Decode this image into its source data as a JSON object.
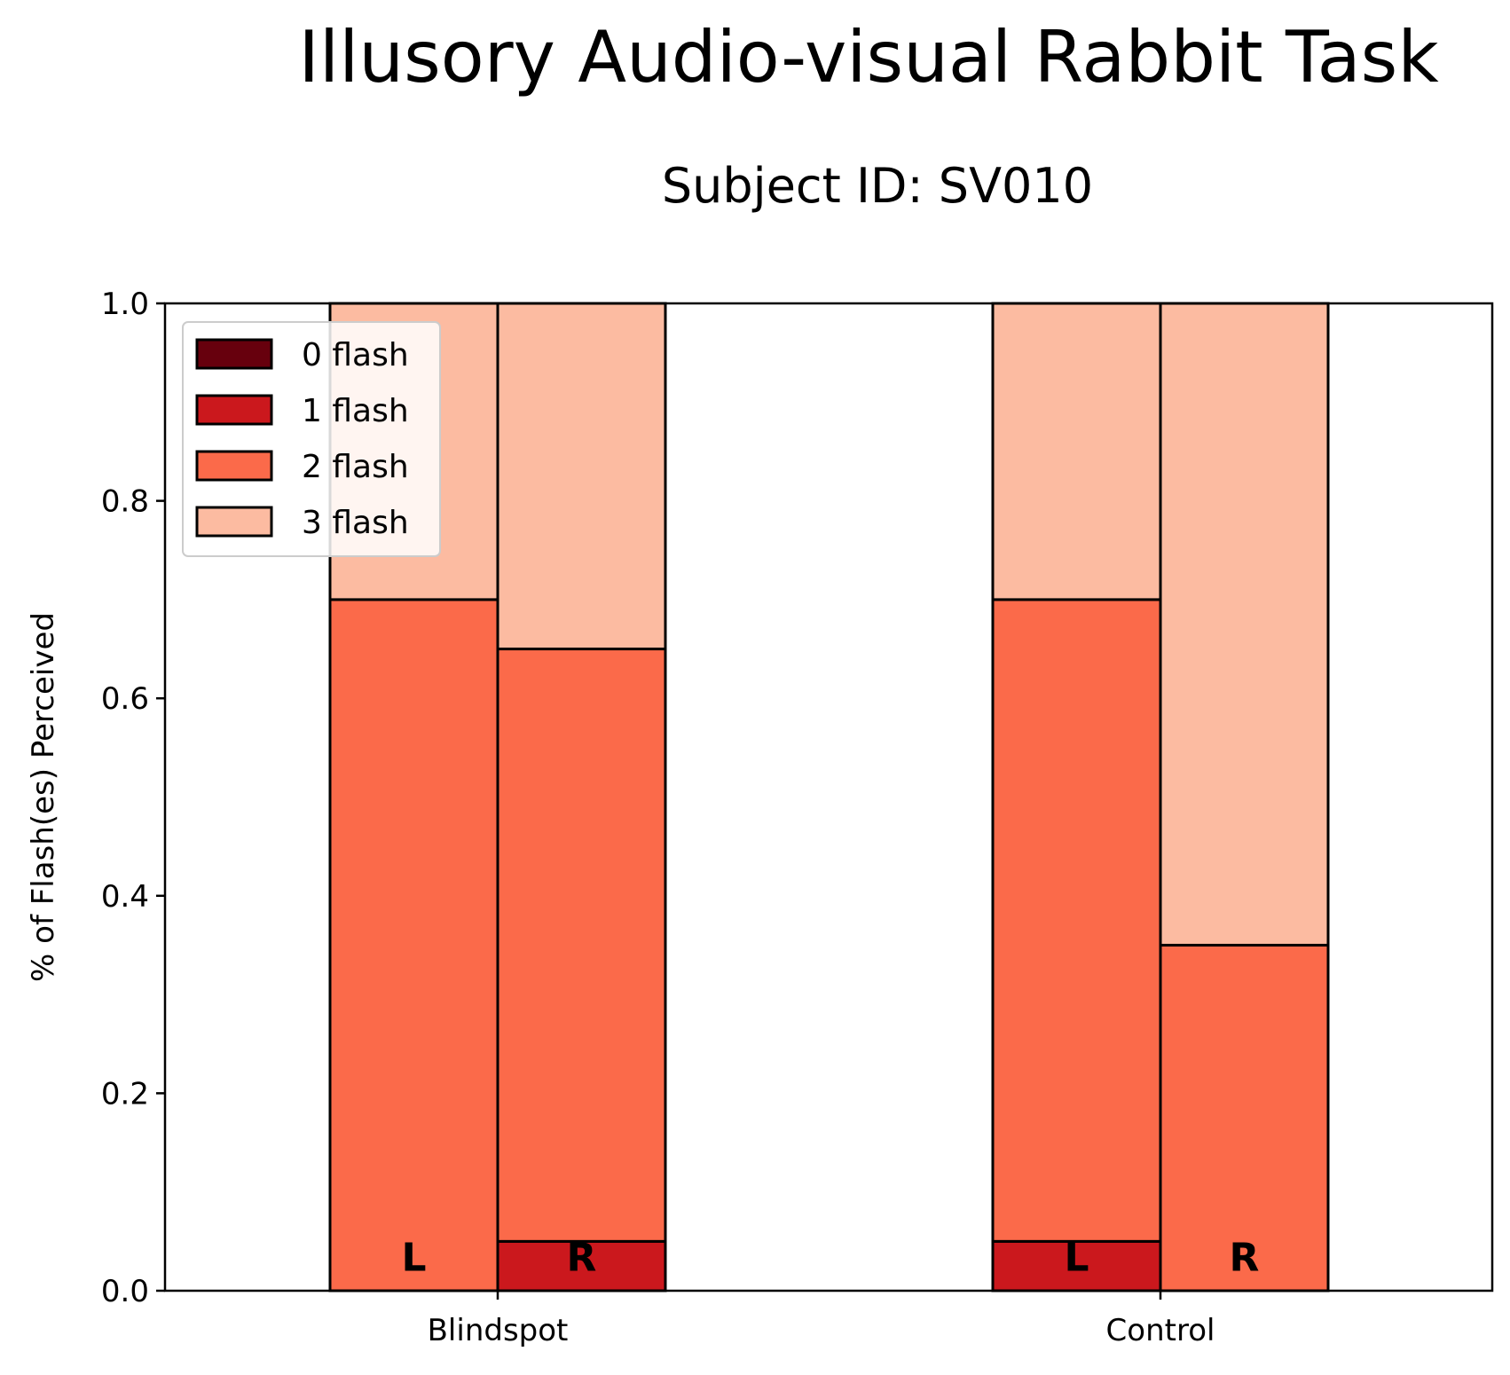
{
  "title": "Illusory Audio-visual Rabbit Task",
  "subtitle": "Subject ID: SV010",
  "chart_data": {
    "type": "bar",
    "stacked": true,
    "title": "Illusory Audio-visual Rabbit Task",
    "subtitle": "Subject ID: SV010",
    "xlabel": "",
    "ylabel": "% of Flash(es) Perceived",
    "ylim": [
      0,
      1.0
    ],
    "yticks": [
      "0.0",
      "0.2",
      "0.4",
      "0.6",
      "0.8",
      "1.0"
    ],
    "categories": [
      "Blindspot",
      "Control"
    ],
    "bar_labels": [
      "L",
      "R"
    ],
    "bars": [
      {
        "category": "Blindspot",
        "label": "L",
        "values": [
          0.0,
          0.0,
          0.7,
          0.3
        ]
      },
      {
        "category": "Blindspot",
        "label": "R",
        "values": [
          0.0,
          0.05,
          0.6,
          0.35
        ]
      },
      {
        "category": "Control",
        "label": "L",
        "values": [
          0.0,
          0.05,
          0.65,
          0.3
        ]
      },
      {
        "category": "Control",
        "label": "R",
        "values": [
          0.0,
          0.0,
          0.35,
          0.65
        ]
      }
    ],
    "series": [
      {
        "name": "0 flash",
        "color": "#67000d"
      },
      {
        "name": "1 flash",
        "color": "#cb181d"
      },
      {
        "name": "2 flash",
        "color": "#fb6a4a"
      },
      {
        "name": "3 flash",
        "color": "#fcbba1"
      }
    ],
    "legend": "upper-left",
    "grid": false
  }
}
